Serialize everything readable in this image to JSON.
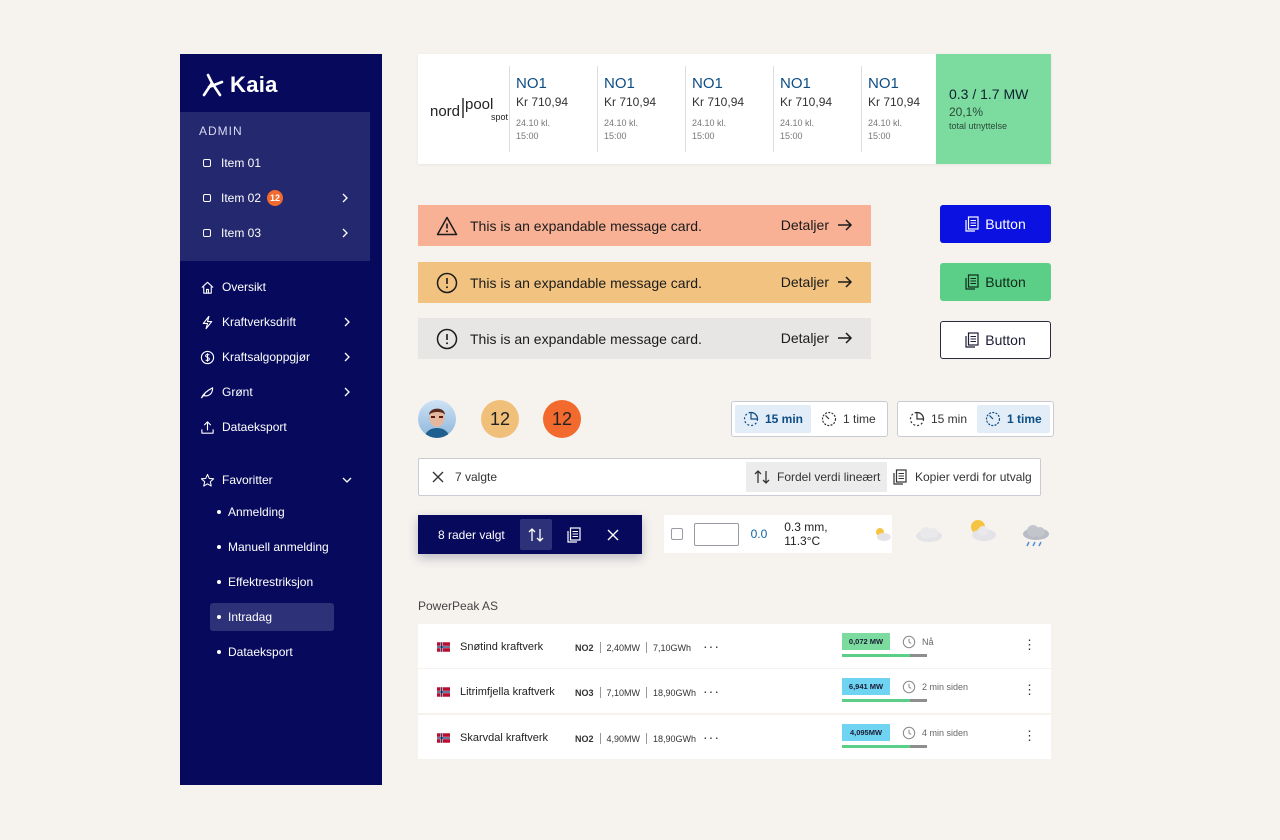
{
  "sidebar": {
    "logo": "Kaia",
    "admin_title": "ADMIN",
    "admin_items": [
      {
        "label": "Item 01",
        "badge": null
      },
      {
        "label": "Item 02",
        "badge": "12"
      },
      {
        "label": "Item 03",
        "badge": null
      }
    ],
    "nav": [
      {
        "label": "Oversikt",
        "icon": "home-icon"
      },
      {
        "label": "Kraftverksdrift",
        "icon": "lightning-icon"
      },
      {
        "label": "Kraftsalgoppgjør",
        "icon": "dollar-icon"
      },
      {
        "label": "Grønt",
        "icon": "leaf-icon"
      },
      {
        "label": "Dataeksport",
        "icon": "upload-icon"
      }
    ],
    "favorites_label": "Favoritter",
    "favorites": [
      "Anmelding",
      "Manuell anmelding",
      "Effektrestriksjon",
      "Intradag",
      "Dataeksport"
    ],
    "active_favorite": "Intradag"
  },
  "prices": {
    "logo_text": [
      "nord",
      "pool",
      "spot"
    ],
    "columns": [
      {
        "zone": "NO1",
        "value": "Kr 710,94",
        "date": "24.10 kl.",
        "time": "15:00"
      },
      {
        "zone": "NO1",
        "value": "Kr 710,94",
        "date": "24.10 kl.",
        "time": "15:00"
      },
      {
        "zone": "NO1",
        "value": "Kr 710,94",
        "date": "24.10 kl.",
        "time": "15:00"
      },
      {
        "zone": "NO1",
        "value": "Kr 710,94",
        "date": "24.10 kl.",
        "time": "15:00"
      },
      {
        "zone": "NO1",
        "value": "Kr 710,94",
        "date": "24.10 kl.",
        "time": "15:00"
      }
    ],
    "utilization": {
      "value": "0.3 / 1.7 MW",
      "percent": "20,1%",
      "label": "total utnyttelse"
    }
  },
  "messages": [
    {
      "text": "This is an expandable message card.",
      "action": "Detaljer",
      "icon": "warning-triangle-icon",
      "color": "#f8b195"
    },
    {
      "text": "This is an expandable message card.",
      "action": "Detaljer",
      "icon": "exclamation-circle-icon",
      "color": "#f2c380"
    },
    {
      "text": "This is an expandable message card.",
      "action": "Detaljer",
      "icon": "exclamation-circle-icon",
      "color": "#e8e6e4"
    }
  ],
  "buttons": [
    {
      "label": "Button",
      "color": "#0a11e0"
    },
    {
      "label": "Button",
      "color": "#5bcf88"
    },
    {
      "label": "Button",
      "color": "#ffffff"
    }
  ],
  "badges": [
    "12",
    "12"
  ],
  "segmented_1": {
    "options": [
      "15 min",
      "1 time"
    ],
    "selected": "15 min"
  },
  "segmented_2": {
    "options": [
      "15 min",
      "1 time"
    ],
    "selected": "1 time"
  },
  "selection": {
    "count_label": "7 valgte",
    "distribute_label": "Fordel verdi lineært",
    "copy_label": "Kopier verdi for utvalg"
  },
  "row_bar": {
    "label": "8 rader valgt"
  },
  "weather": {
    "value": "0.0",
    "text": "0.3 mm, 11.3°C"
  },
  "company": "PowerPeak AS",
  "plants": [
    {
      "name": "Snøtind kraftverk",
      "zone": "NO2",
      "power": "2,40MW",
      "energy": "7,10GWh",
      "mw": "0,072 MW",
      "mw_color": "#7cdb9f",
      "fill": 0.8,
      "time": "Nå"
    },
    {
      "name": "Litrimfjella kraftverk",
      "zone": "NO3",
      "power": "7,10MW",
      "energy": "18,90GWh",
      "mw": "6,941 MW",
      "mw_color": "#6fd3f2",
      "fill": 0.8,
      "time": "2 min siden"
    },
    {
      "name": "Skarvdal kraftverk",
      "zone": "NO2",
      "power": "4,90MW",
      "energy": "18,90GWh",
      "mw": "4,095MW",
      "mw_color": "#6fd3f2",
      "fill": 0.8,
      "time": "4 min siden"
    }
  ]
}
